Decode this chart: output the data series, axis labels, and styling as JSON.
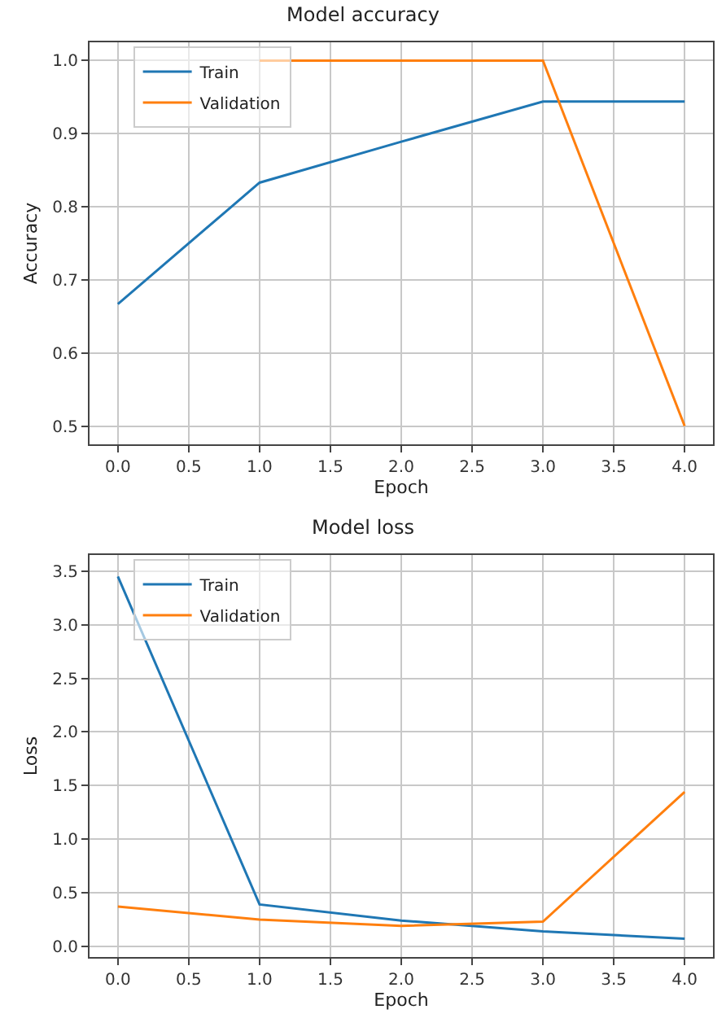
{
  "chart_data": [
    {
      "type": "line",
      "title": "Model accuracy",
      "xlabel": "Epoch",
      "ylabel": "Accuracy",
      "x": [
        0,
        1,
        2,
        3,
        4
      ],
      "series": [
        {
          "name": "Train",
          "color": "#1f77b4",
          "values": [
            0.667,
            0.833,
            0.889,
            0.944,
            0.944
          ]
        },
        {
          "name": "Validation",
          "color": "#ff7f0e",
          "values": [
            null,
            1.0,
            1.0,
            1.0,
            0.5
          ]
        }
      ],
      "xlim": [
        -0.2,
        4.2
      ],
      "xticks": [
        {
          "value": 0,
          "label": "0.0"
        },
        {
          "value": 0.5,
          "label": "0.5"
        },
        {
          "value": 1,
          "label": "1.0"
        },
        {
          "value": 1.5,
          "label": "1.5"
        },
        {
          "value": 2,
          "label": "2.0"
        },
        {
          "value": 2.5,
          "label": "2.5"
        },
        {
          "value": 3,
          "label": "3.0"
        },
        {
          "value": 3.5,
          "label": "3.5"
        },
        {
          "value": 4,
          "label": "4.0"
        }
      ],
      "ylim": [
        0.475,
        1.025
      ],
      "yticks": [
        0.5,
        0.6,
        0.7,
        0.8,
        0.9,
        {
          "value": 1,
          "label": "1.0"
        }
      ],
      "grid": true,
      "legend": "top left"
    },
    {
      "type": "line",
      "title": "Model loss",
      "xlabel": "Epoch",
      "ylabel": "Loss",
      "x": [
        0,
        1,
        2,
        3,
        4
      ],
      "series": [
        {
          "name": "Train",
          "color": "#1f77b4",
          "values": [
            3.45,
            0.39,
            0.24,
            0.14,
            0.07
          ]
        },
        {
          "name": "Validation",
          "color": "#ff7f0e",
          "values": [
            0.37,
            0.25,
            0.19,
            0.23,
            1.44
          ]
        }
      ],
      "xlim": [
        -0.2,
        4.2
      ],
      "xticks": [
        {
          "value": 0,
          "label": "0.0"
        },
        {
          "value": 0.5,
          "label": "0.5"
        },
        {
          "value": 1,
          "label": "1.0"
        },
        {
          "value": 1.5,
          "label": "1.5"
        },
        {
          "value": 2,
          "label": "2.0"
        },
        {
          "value": 2.5,
          "label": "2.5"
        },
        {
          "value": 3,
          "label": "3.0"
        },
        {
          "value": 3.5,
          "label": "3.5"
        },
        {
          "value": 4,
          "label": "4.0"
        }
      ],
      "ylim": [
        -0.1,
        3.65
      ],
      "yticks": [
        {
          "value": 0,
          "label": "0.0"
        },
        0.5,
        {
          "value": 1,
          "label": "1.0"
        },
        1.5,
        {
          "value": 2,
          "label": "2.0"
        },
        2.5,
        {
          "value": 3,
          "label": "3.0"
        },
        3.5
      ],
      "grid": true,
      "legend": "top left"
    }
  ]
}
